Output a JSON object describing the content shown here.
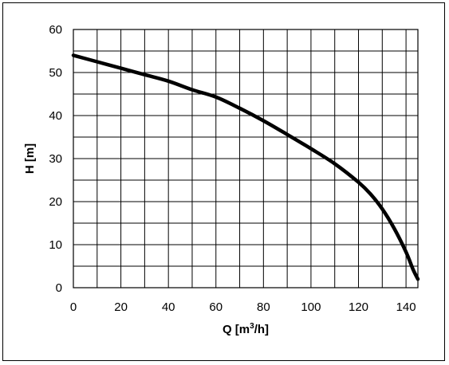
{
  "chart_data": {
    "type": "line",
    "title": "",
    "xlabel": "Q [m",
    "xlabel_sup": "3",
    "xlabel_suffix": "/h]",
    "ylabel": "H [m]",
    "xlim": [
      0,
      145
    ],
    "ylim": [
      0,
      60
    ],
    "x_ticks": [
      0,
      20,
      40,
      60,
      80,
      100,
      120,
      140
    ],
    "y_ticks": [
      0,
      10,
      20,
      30,
      40,
      50,
      60
    ],
    "x_grid_step": 10,
    "y_grid_step": 5,
    "grid": true,
    "legend": "none",
    "line_color": "#000000",
    "series": [
      {
        "x": [
          0,
          10,
          20,
          30,
          40,
          50,
          60,
          70,
          80,
          90,
          100,
          110,
          120,
          125,
          130,
          135,
          140,
          143,
          145
        ],
        "y": [
          54,
          52.5,
          51,
          49.5,
          48,
          46,
          44.3,
          41.7,
          38.8,
          35.6,
          32.3,
          28.8,
          24.5,
          21.8,
          18.3,
          13.8,
          8.3,
          4.2,
          2
        ]
      }
    ]
  }
}
